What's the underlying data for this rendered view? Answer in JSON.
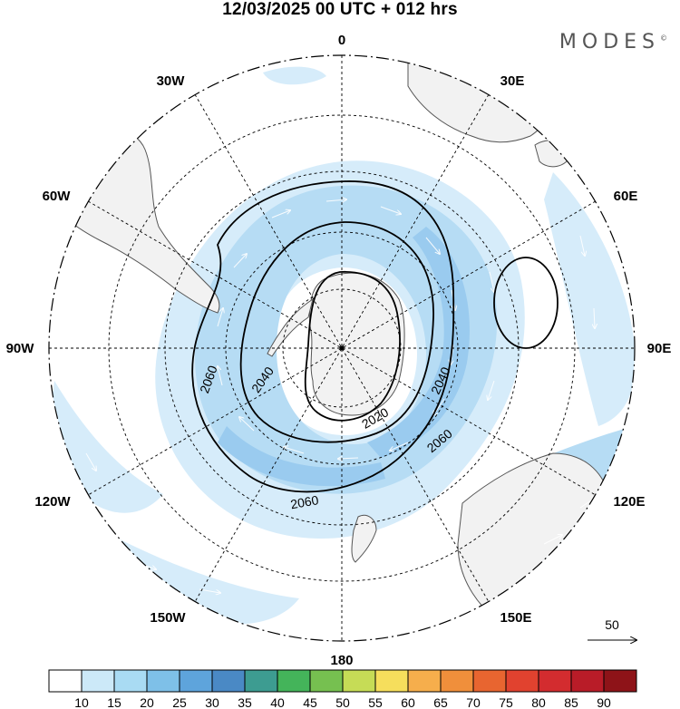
{
  "header": {
    "title": "12/03/2025  00 UTC  + 012 hrs",
    "brand": "MODES",
    "brand_mark": "©"
  },
  "map": {
    "projection": "south polar stereographic",
    "meridian_labels": [
      "0",
      "30E",
      "60E",
      "90E",
      "120E",
      "150E",
      "180",
      "150W",
      "120W",
      "90W",
      "60W",
      "30W"
    ],
    "contour_labels": [
      "2020",
      "2040",
      "2040",
      "2060",
      "2060",
      "2060"
    ],
    "reference_vector": {
      "label": "50"
    },
    "colors": {
      "land": "#f2f2f2",
      "ocean": "#ffffff",
      "shade_10_15": "#d6ecfa",
      "shade_15_20": "#b6dcf4",
      "shade_20_25": "#9acbef"
    }
  },
  "colorbar": {
    "ticks": [
      "10",
      "15",
      "20",
      "25",
      "30",
      "35",
      "40",
      "45",
      "50",
      "55",
      "60",
      "65",
      "70",
      "75",
      "80",
      "85",
      "90"
    ],
    "colors": [
      "#ffffff",
      "#cce9f8",
      "#a9dbf3",
      "#7ec0e8",
      "#5ea4dc",
      "#4a89c5",
      "#3d9c91",
      "#44b45a",
      "#76c050",
      "#c6dc56",
      "#f6de5c",
      "#f6ae4c",
      "#f08f3b",
      "#e86530",
      "#e1422f",
      "#d32c2f",
      "#b91c28",
      "#8e1318"
    ]
  }
}
